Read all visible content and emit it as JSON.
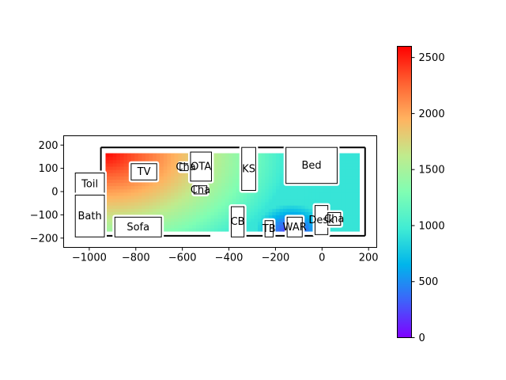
{
  "chart_data": {
    "type": "heatmap",
    "title": "",
    "xlabel": "",
    "ylabel": "",
    "xlim": [
      -1110,
      235
    ],
    "ylim": [
      -240,
      240
    ],
    "xticks": [
      -1000,
      -800,
      -600,
      -400,
      -200,
      0,
      200
    ],
    "yticks": [
      -200,
      -100,
      0,
      100,
      200
    ],
    "xtick_labels": [
      "−1000",
      "−800",
      "−600",
      "−400",
      "−200",
      "0",
      "200"
    ],
    "ytick_labels": [
      "−200",
      "−100",
      "0",
      "100",
      "200"
    ],
    "colormap": "rainbow",
    "colorbar": {
      "range": [
        0,
        2600
      ],
      "ticks": [
        0,
        500,
        1000,
        1500,
        2000,
        2500
      ],
      "tick_labels": [
        "0",
        "500",
        "1000",
        "1500",
        "2000",
        "2500"
      ]
    },
    "field": {
      "x": [
        -930,
        160
      ],
      "y": [
        -170,
        165
      ],
      "hot_spot": [
        -930,
        165
      ],
      "max_value": 2580,
      "cool_spot": [
        -130,
        -170
      ],
      "min_value": 80
    },
    "objects": [
      {
        "label": "TV",
        "x": [
          -820,
          -710
        ],
        "y": [
          50,
          120
        ]
      },
      {
        "label": "Cha",
        "x": [
          -610,
          -560
        ],
        "y": [
          90,
          120
        ]
      },
      {
        "label": "OTA",
        "x": [
          -565,
          -475
        ],
        "y": [
          45,
          170
        ]
      },
      {
        "label": "Cha",
        "x": [
          -550,
          -495
        ],
        "y": [
          -10,
          25
        ]
      },
      {
        "label": "KS",
        "x": [
          -345,
          -285
        ],
        "y": [
          5,
          190
        ]
      },
      {
        "label": "Bed",
        "x": [
          -155,
          65
        ],
        "y": [
          35,
          190
        ]
      },
      {
        "label": "Toil",
        "x": [
          -1060,
          -935
        ],
        "y": [
          -15,
          80
        ]
      },
      {
        "label": "Bath",
        "x": [
          -1060,
          -935
        ],
        "y": [
          -195,
          -15
        ]
      },
      {
        "label": "Sofa",
        "x": [
          -890,
          -690
        ],
        "y": [
          -195,
          -110
        ]
      },
      {
        "label": "CB",
        "x": [
          -390,
          -335
        ],
        "y": [
          -195,
          -65
        ]
      },
      {
        "label": "TB",
        "x": [
          -245,
          -210
        ],
        "y": [
          -195,
          -125
        ]
      },
      {
        "label": "WAR",
        "x": [
          -150,
          -85
        ],
        "y": [
          -195,
          -110
        ]
      },
      {
        "label": "Desk",
        "x": [
          -30,
          25
        ],
        "y": [
          -185,
          -60
        ]
      },
      {
        "label": "Cha",
        "x": [
          25,
          80
        ],
        "y": [
          -145,
          -90
        ]
      }
    ],
    "room_walls": [
      [
        [
          -950,
          190
        ],
        [
          185,
          190
        ]
      ],
      [
        [
          185,
          190
        ],
        [
          185,
          -190
        ]
      ],
      [
        [
          185,
          -190
        ],
        [
          -400,
          -190
        ]
      ],
      [
        [
          -480,
          -190
        ],
        [
          -950,
          -190
        ]
      ],
      [
        [
          -950,
          -190
        ],
        [
          -950,
          190
        ]
      ]
    ]
  }
}
